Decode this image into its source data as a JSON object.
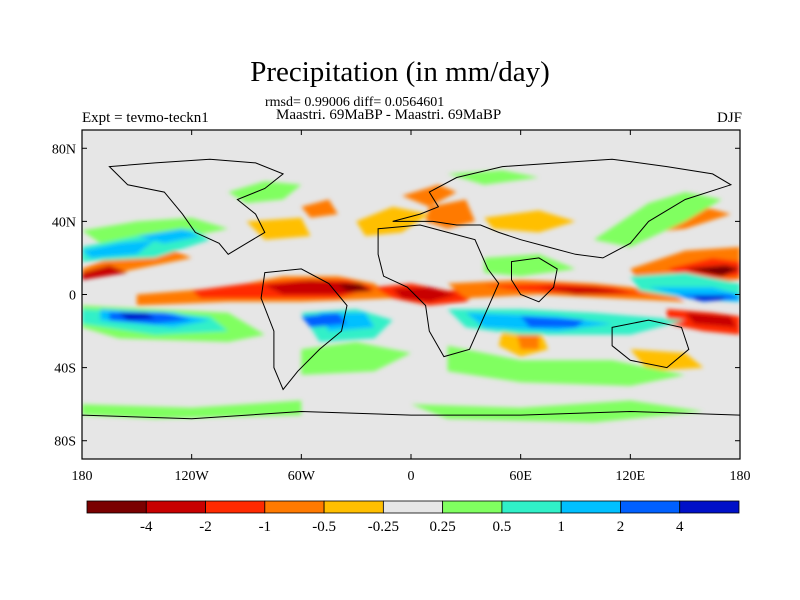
{
  "title": "Precipitation (in mm/day)",
  "stats_line": "rmsd= 0.99006 diff= 0.0564601",
  "experiment": "Expt = tevmo-teckn1",
  "comparison": "Maastri.  69MaBP - Maastri.  69MaBP",
  "season": "DJF",
  "map": {
    "projection": "cylindrical-equidistant",
    "lon_range": [
      -180,
      180
    ],
    "lat_range": [
      -90,
      90
    ],
    "lon_ticks": [
      {
        "value": -180,
        "label": "180"
      },
      {
        "value": -120,
        "label": "120W"
      },
      {
        "value": -60,
        "label": "60W"
      },
      {
        "value": 0,
        "label": "0"
      },
      {
        "value": 60,
        "label": "60E"
      },
      {
        "value": 120,
        "label": "120E"
      },
      {
        "value": 180,
        "label": "180"
      }
    ],
    "lat_ticks": [
      {
        "value": 80,
        "label": "80N"
      },
      {
        "value": 40,
        "label": "40N"
      },
      {
        "value": 0,
        "label": "0"
      },
      {
        "value": -40,
        "label": "40S"
      },
      {
        "value": -80,
        "label": "80S"
      }
    ],
    "background_color": "#e6e6e6",
    "coastline_color": "#000000"
  },
  "colorbar": {
    "colors": [
      "#7a0000",
      "#c80000",
      "#ff2a00",
      "#ff7a00",
      "#ffbf00",
      "#e6e6e6",
      "#80ff60",
      "#30f0c8",
      "#00c0ff",
      "#0060ff",
      "#0010c8"
    ],
    "labels": [
      "-4",
      "-2",
      "-1",
      "-0.5",
      "-0.25",
      "0.25",
      "0.5",
      "1",
      "2",
      "4"
    ]
  }
}
